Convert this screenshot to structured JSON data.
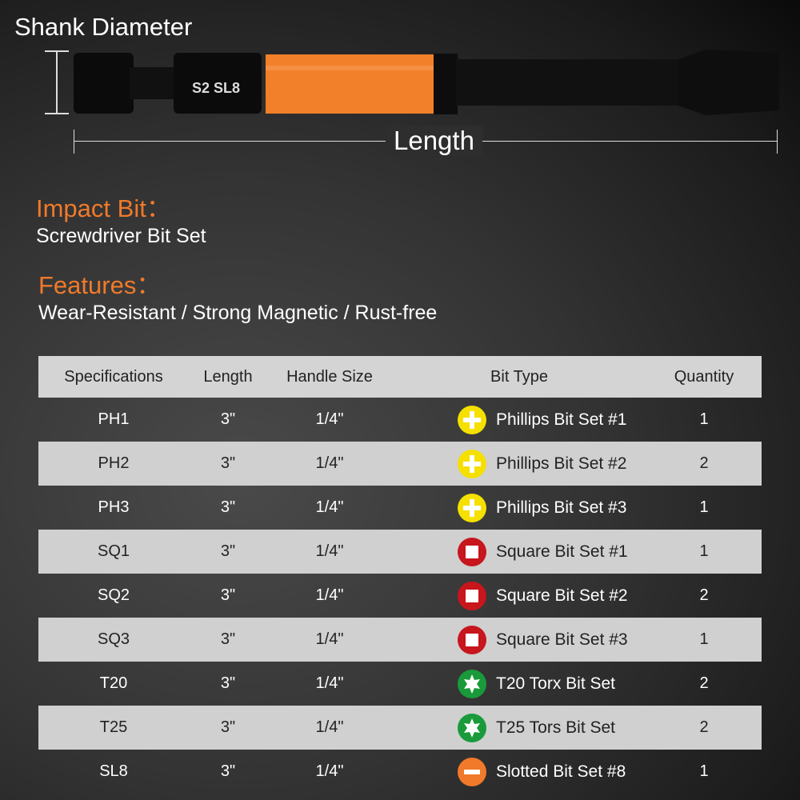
{
  "diagram": {
    "shank_label": "Shank Diameter",
    "length_label": "Length",
    "bit_marking": "S2 SL8"
  },
  "impact_bit": {
    "heading": "Impact Bit：",
    "text": "Screwdriver Bit Set"
  },
  "features": {
    "heading": "Features：",
    "text": "Wear-Resistant / Strong Magnetic / Rust-free"
  },
  "colors": {
    "accent": "#f07a2a",
    "phillips": "#f5e000",
    "square": "#c8161d",
    "torx": "#1a9a3a",
    "slotted": "#f07a2a"
  },
  "table": {
    "headers": [
      "Specifications",
      "Length",
      "Handle Size",
      "Bit Type",
      "Quantity"
    ],
    "rows": [
      {
        "spec": "PH1",
        "length": "3\"",
        "handle": "1/4\"",
        "icon": "phillips-icon",
        "type": "Phillips Bit Set #1",
        "qty": "1"
      },
      {
        "spec": "PH2",
        "length": "3\"",
        "handle": "1/4\"",
        "icon": "phillips-icon",
        "type": "Phillips Bit Set #2",
        "qty": "2"
      },
      {
        "spec": "PH3",
        "length": "3\"",
        "handle": "1/4\"",
        "icon": "phillips-icon",
        "type": "Phillips Bit Set #3",
        "qty": "1"
      },
      {
        "spec": "SQ1",
        "length": "3\"",
        "handle": "1/4\"",
        "icon": "square-icon",
        "type": "Square Bit Set #1",
        "qty": "1"
      },
      {
        "spec": "SQ2",
        "length": "3\"",
        "handle": "1/4\"",
        "icon": "square-icon",
        "type": "Square Bit Set #2",
        "qty": "2"
      },
      {
        "spec": "SQ3",
        "length": "3\"",
        "handle": "1/4\"",
        "icon": "square-icon",
        "type": "Square Bit Set #3",
        "qty": "1"
      },
      {
        "spec": "T20",
        "length": "3\"",
        "handle": "1/4\"",
        "icon": "torx-icon",
        "type": "T20 Torx Bit Set",
        "qty": "2"
      },
      {
        "spec": "T25",
        "length": "3\"",
        "handle": "1/4\"",
        "icon": "torx-icon",
        "type": "T25 Tors Bit Set",
        "qty": "2"
      },
      {
        "spec": "SL8",
        "length": "3\"",
        "handle": "1/4\"",
        "icon": "slotted-icon",
        "type": "Slotted Bit Set #8",
        "qty": "1"
      }
    ]
  }
}
